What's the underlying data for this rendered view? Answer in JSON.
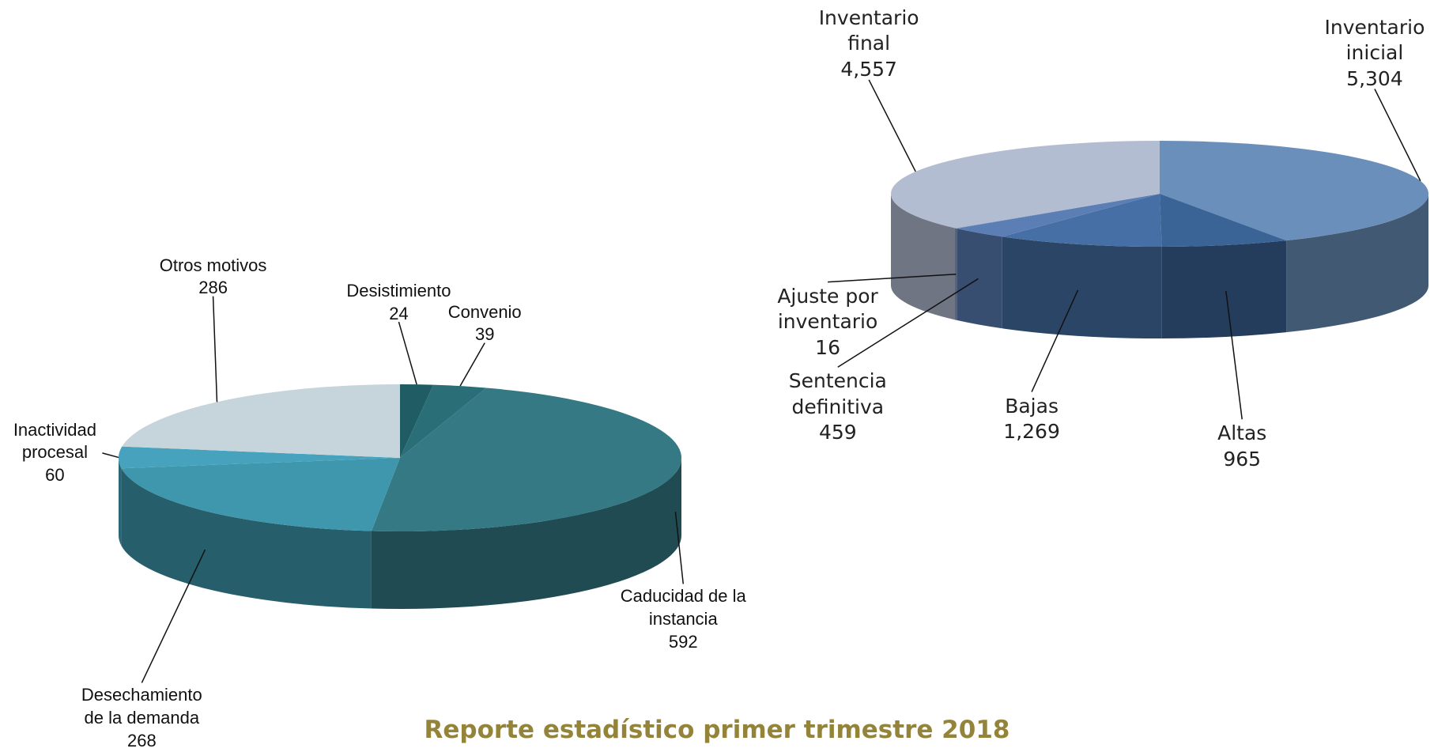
{
  "title": "Reporte estadístico primer trimestre 2018",
  "chart_data": [
    {
      "type": "pie3d",
      "categories": [
        "Desistimiento",
        "Convenio",
        "Caducidad de la instancia",
        "Desechamiento de la demanda",
        "Inactividad procesal",
        "Otros motivos"
      ],
      "values": [
        24,
        39,
        592,
        268,
        60,
        286
      ],
      "colors": [
        "#1f5c63",
        "#2a6f78",
        "#347984",
        "#3e97ad",
        "#47a3bd",
        "#c6d4dc"
      ]
    },
    {
      "type": "pie3d",
      "categories": [
        "Inventario inicial",
        "Altas",
        "Bajas",
        "Sentencia definitiva",
        "Ajuste por inventario",
        "Inventario final"
      ],
      "values": [
        5304,
        965,
        1269,
        459,
        16,
        4557
      ],
      "value_labels": [
        "5,304",
        "965",
        "1,269",
        "459",
        "16",
        "4,557"
      ],
      "colors": [
        "#6a8fbb",
        "#3a6396",
        "#4670a5",
        "#5b7eb4",
        "#7b95c4",
        "#b3bdd2"
      ]
    }
  ]
}
